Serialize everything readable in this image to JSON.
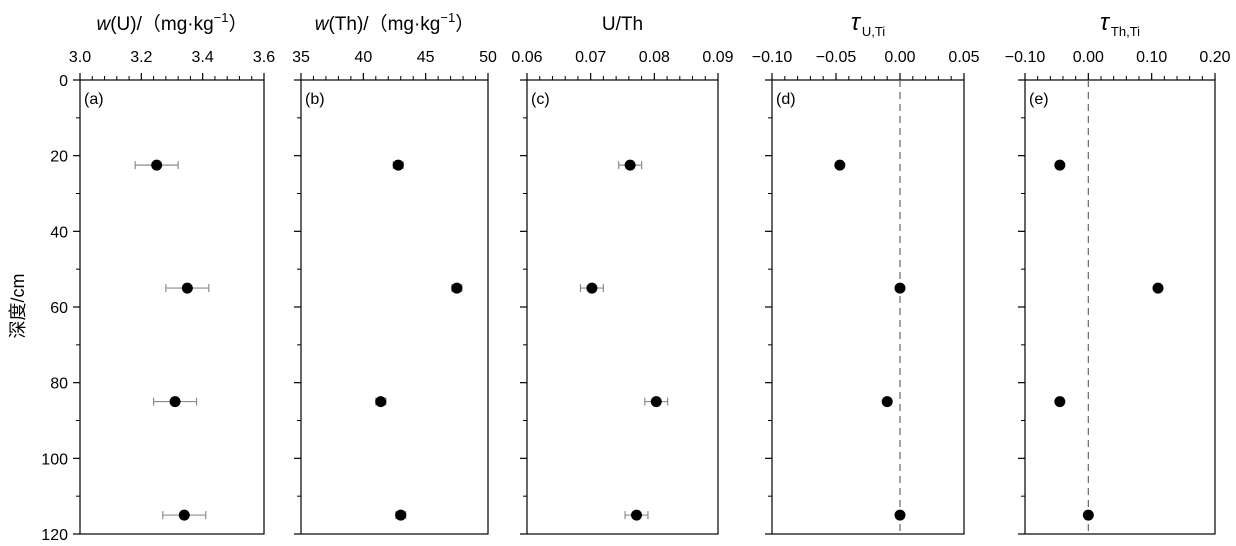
{
  "figure": {
    "y_axis_label": "深度/cm",
    "y_ticks": [
      0,
      20,
      40,
      60,
      80,
      100,
      120
    ],
    "ylim": [
      0,
      120
    ],
    "y_inverted": true
  },
  "chart_data": [
    {
      "type": "scatter",
      "panel_label": "(a)",
      "title_main": "w",
      "title_rest": "(U)/（mg·kg",
      "title_sup": "−1",
      "title_close": "）",
      "xlim": [
        3.0,
        3.6
      ],
      "x_ticks": [
        "3.0",
        "3.2",
        "3.4",
        "3.6"
      ],
      "x_tick_values": [
        3.0,
        3.2,
        3.4,
        3.6
      ],
      "points": [
        {
          "x": 3.25,
          "y": 22.5,
          "xerr": 0.07
        },
        {
          "x": 3.35,
          "y": 55,
          "xerr": 0.07
        },
        {
          "x": 3.31,
          "y": 85,
          "xerr": 0.07
        },
        {
          "x": 3.34,
          "y": 115,
          "xerr": 0.07
        }
      ],
      "reference_line": null
    },
    {
      "type": "scatter",
      "panel_label": "(b)",
      "title_main": "w",
      "title_rest": "(Th)/（mg·kg",
      "title_sup": "−1",
      "title_close": "）",
      "xlim": [
        35,
        50
      ],
      "x_ticks": [
        "35",
        "40",
        "45",
        "50"
      ],
      "x_tick_values": [
        35,
        40,
        45,
        50
      ],
      "points": [
        {
          "x": 42.8,
          "y": 22.5,
          "xerr": 0.4
        },
        {
          "x": 47.5,
          "y": 55,
          "xerr": 0.4
        },
        {
          "x": 41.4,
          "y": 85,
          "xerr": 0.4
        },
        {
          "x": 43.0,
          "y": 115,
          "xerr": 0.4
        }
      ],
      "reference_line": null
    },
    {
      "type": "scatter",
      "panel_label": "(c)",
      "title_main": "U/Th",
      "title_rest": "",
      "title_sup": "",
      "title_close": "",
      "xlim": [
        0.06,
        0.09
      ],
      "x_ticks": [
        "0.06",
        "0.07",
        "0.08",
        "0.09"
      ],
      "x_tick_values": [
        0.06,
        0.07,
        0.08,
        0.09
      ],
      "points": [
        {
          "x": 0.0762,
          "y": 22.5,
          "xerr": 0.0018
        },
        {
          "x": 0.0702,
          "y": 55,
          "xerr": 0.0018
        },
        {
          "x": 0.0803,
          "y": 85,
          "xerr": 0.0018
        },
        {
          "x": 0.0772,
          "y": 115,
          "xerr": 0.0018
        }
      ],
      "reference_line": null
    },
    {
      "type": "scatter",
      "panel_label": "(d)",
      "title_main": "τ",
      "title_rest": "",
      "title_sub": "U,Ti",
      "xlim": [
        -0.1,
        0.05
      ],
      "x_ticks": [
        "−0.10",
        "−0.05",
        "0.00",
        "0.05"
      ],
      "x_tick_values": [
        -0.1,
        -0.05,
        0.0,
        0.05
      ],
      "points": [
        {
          "x": -0.047,
          "y": 22.5,
          "xerr": 0
        },
        {
          "x": 0.0,
          "y": 55,
          "xerr": 0
        },
        {
          "x": -0.01,
          "y": 85,
          "xerr": 0
        },
        {
          "x": 0.0,
          "y": 115,
          "xerr": 0
        }
      ],
      "reference_line": 0
    },
    {
      "type": "scatter",
      "panel_label": "(e)",
      "title_main": "τ",
      "title_rest": "",
      "title_sub": "Th,Ti",
      "xlim": [
        -0.1,
        0.2
      ],
      "x_ticks": [
        "−0.10",
        "0.00",
        "0.10",
        "0.20"
      ],
      "x_tick_values": [
        -0.1,
        0.0,
        0.1,
        0.2
      ],
      "points": [
        {
          "x": -0.045,
          "y": 22.5,
          "xerr": 0
        },
        {
          "x": 0.11,
          "y": 55,
          "xerr": 0
        },
        {
          "x": -0.045,
          "y": 85,
          "xerr": 0
        },
        {
          "x": 0.0,
          "y": 115,
          "xerr": 0
        }
      ],
      "reference_line": 0
    }
  ]
}
